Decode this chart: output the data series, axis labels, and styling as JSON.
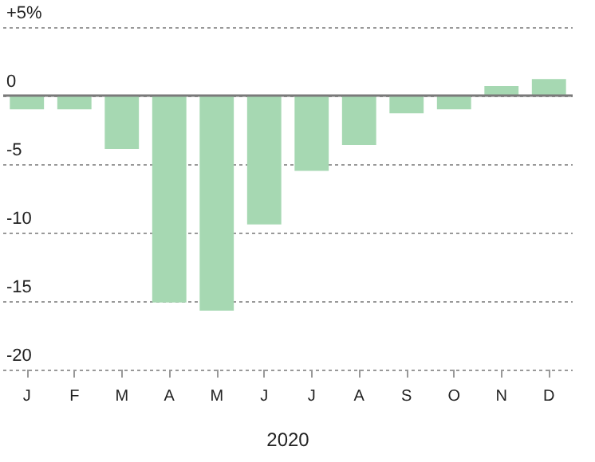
{
  "chart_data": {
    "type": "bar",
    "xlabel": "2020",
    "categories": [
      "J",
      "F",
      "M",
      "A",
      "M",
      "J",
      "J",
      "A",
      "S",
      "O",
      "N",
      "D"
    ],
    "values": [
      -1.0,
      -1.0,
      -3.9,
      -15.1,
      -15.7,
      -9.4,
      -5.5,
      -3.6,
      -1.3,
      -1.0,
      0.7,
      1.2
    ],
    "color": "#a6d8b2",
    "ylim": [
      -20,
      5
    ],
    "yticks": [
      -20,
      -15,
      -10,
      -5,
      0,
      {
        "value": 5,
        "label": "+5%"
      }
    ],
    "grid": "y",
    "ref_lines": [
      {
        "axis": "y",
        "value": 0,
        "color": "#7a7a7a"
      }
    ]
  }
}
